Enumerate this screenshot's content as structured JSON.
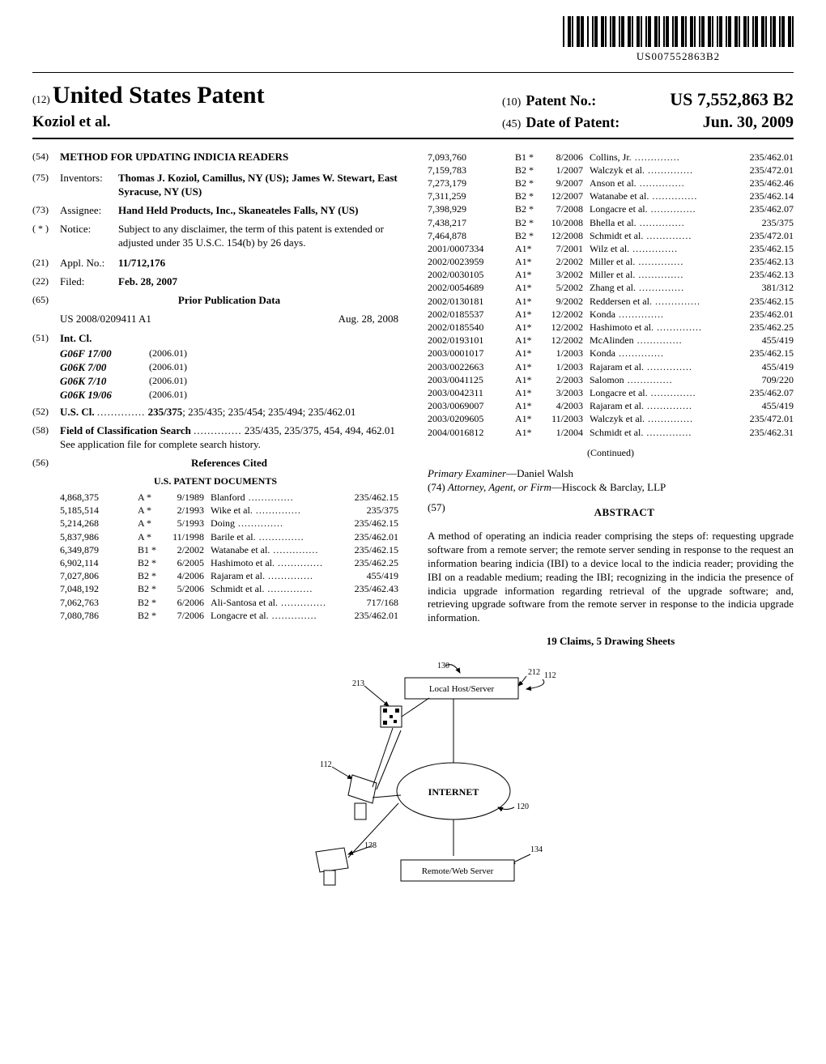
{
  "barcode_number": "US007552863B2",
  "header": {
    "lead_code": "(12)",
    "country_title": "United States Patent",
    "authors": "Koziol et al.",
    "patno_code": "(10)",
    "patno_label": "Patent No.:",
    "patno_value": "US 7,552,863 B2",
    "date_code": "(45)",
    "date_label": "Date of Patent:",
    "date_value": "Jun. 30, 2009"
  },
  "f54": {
    "code": "(54)",
    "title": "METHOD FOR UPDATING INDICIA READERS"
  },
  "f75": {
    "code": "(75)",
    "label": "Inventors:",
    "value": "Thomas J. Koziol, Camillus, NY (US); James W. Stewart, East Syracuse, NY (US)"
  },
  "f73": {
    "code": "(73)",
    "label": "Assignee:",
    "value": "Hand Held Products, Inc., Skaneateles Falls, NY (US)"
  },
  "fnotice": {
    "code": "( * )",
    "label": "Notice:",
    "value": "Subject to any disclaimer, the term of this patent is extended or adjusted under 35 U.S.C. 154(b) by 26 days."
  },
  "f21": {
    "code": "(21)",
    "label": "Appl. No.:",
    "value": "11/712,176"
  },
  "f22": {
    "code": "(22)",
    "label": "Filed:",
    "value": "Feb. 28, 2007"
  },
  "f65": {
    "code": "(65)",
    "heading": "Prior Publication Data",
    "pub_no": "US 2008/0209411 A1",
    "pub_date": "Aug. 28, 2008"
  },
  "f51": {
    "code": "(51)",
    "label": "Int. Cl.",
    "rows": [
      {
        "cls": "G06F 17/00",
        "yr": "(2006.01)"
      },
      {
        "cls": "G06K 7/00",
        "yr": "(2006.01)"
      },
      {
        "cls": "G06K 7/10",
        "yr": "(2006.01)"
      },
      {
        "cls": "G06K 19/06",
        "yr": "(2006.01)"
      }
    ]
  },
  "f52": {
    "code": "(52)",
    "label": "U.S. Cl.",
    "value": "235/375; 235/435; 235/454; 235/494; 235/462.01"
  },
  "f58": {
    "code": "(58)",
    "label": "Field of Classification Search",
    "value": "235/435, 235/375, 454, 494, 462.01",
    "note": "See application file for complete search history."
  },
  "f56": {
    "code": "(56)",
    "heading": "References Cited",
    "sub": "U.S. PATENT DOCUMENTS"
  },
  "left_cites": [
    {
      "pn": "4,868,375",
      "tp": "A  *",
      "dt": "9/1989",
      "nm": "Blanford",
      "cl": "235/462.15"
    },
    {
      "pn": "5,185,514",
      "tp": "A  *",
      "dt": "2/1993",
      "nm": "Wike et al.",
      "cl": "235/375"
    },
    {
      "pn": "5,214,268",
      "tp": "A  *",
      "dt": "5/1993",
      "nm": "Doing",
      "cl": "235/462.15"
    },
    {
      "pn": "5,837,986",
      "tp": "A  *",
      "dt": "11/1998",
      "nm": "Barile et al.",
      "cl": "235/462.01"
    },
    {
      "pn": "6,349,879",
      "tp": "B1 *",
      "dt": "2/2002",
      "nm": "Watanabe et al.",
      "cl": "235/462.15"
    },
    {
      "pn": "6,902,114",
      "tp": "B2 *",
      "dt": "6/2005",
      "nm": "Hashimoto et al.",
      "cl": "235/462.25"
    },
    {
      "pn": "7,027,806",
      "tp": "B2 *",
      "dt": "4/2006",
      "nm": "Rajaram et al.",
      "cl": "455/419"
    },
    {
      "pn": "7,048,192",
      "tp": "B2 *",
      "dt": "5/2006",
      "nm": "Schmidt et al.",
      "cl": "235/462.43"
    },
    {
      "pn": "7,062,763",
      "tp": "B2 *",
      "dt": "6/2006",
      "nm": "Ali-Santosa et al.",
      "cl": "717/168"
    },
    {
      "pn": "7,080,786",
      "tp": "B2 *",
      "dt": "7/2006",
      "nm": "Longacre et al.",
      "cl": "235/462.01"
    }
  ],
  "right_cites": [
    {
      "pn": "7,093,760",
      "tp": "B1 *",
      "dt": "8/2006",
      "nm": "Collins, Jr.",
      "cl": "235/462.01"
    },
    {
      "pn": "7,159,783",
      "tp": "B2 *",
      "dt": "1/2007",
      "nm": "Walczyk et al.",
      "cl": "235/472.01"
    },
    {
      "pn": "7,273,179",
      "tp": "B2 *",
      "dt": "9/2007",
      "nm": "Anson et al.",
      "cl": "235/462.46"
    },
    {
      "pn": "7,311,259",
      "tp": "B2 *",
      "dt": "12/2007",
      "nm": "Watanabe et al.",
      "cl": "235/462.14"
    },
    {
      "pn": "7,398,929",
      "tp": "B2 *",
      "dt": "7/2008",
      "nm": "Longacre et al.",
      "cl": "235/462.07"
    },
    {
      "pn": "7,438,217",
      "tp": "B2 *",
      "dt": "10/2008",
      "nm": "Bhella et al.",
      "cl": "235/375"
    },
    {
      "pn": "7,464,878",
      "tp": "B2 *",
      "dt": "12/2008",
      "nm": "Schmidt et al.",
      "cl": "235/472.01"
    },
    {
      "pn": "2001/0007334",
      "tp": "A1*",
      "dt": "7/2001",
      "nm": "Wilz et al.",
      "cl": "235/462.15"
    },
    {
      "pn": "2002/0023959",
      "tp": "A1*",
      "dt": "2/2002",
      "nm": "Miller et al.",
      "cl": "235/462.13"
    },
    {
      "pn": "2002/0030105",
      "tp": "A1*",
      "dt": "3/2002",
      "nm": "Miller et al.",
      "cl": "235/462.13"
    },
    {
      "pn": "2002/0054689",
      "tp": "A1*",
      "dt": "5/2002",
      "nm": "Zhang et al.",
      "cl": "381/312"
    },
    {
      "pn": "2002/0130181",
      "tp": "A1*",
      "dt": "9/2002",
      "nm": "Reddersen et al.",
      "cl": "235/462.15"
    },
    {
      "pn": "2002/0185537",
      "tp": "A1*",
      "dt": "12/2002",
      "nm": "Konda",
      "cl": "235/462.01"
    },
    {
      "pn": "2002/0185540",
      "tp": "A1*",
      "dt": "12/2002",
      "nm": "Hashimoto et al.",
      "cl": "235/462.25"
    },
    {
      "pn": "2002/0193101",
      "tp": "A1*",
      "dt": "12/2002",
      "nm": "McAlinden",
      "cl": "455/419"
    },
    {
      "pn": "2003/0001017",
      "tp": "A1*",
      "dt": "1/2003",
      "nm": "Konda",
      "cl": "235/462.15"
    },
    {
      "pn": "2003/0022663",
      "tp": "A1*",
      "dt": "1/2003",
      "nm": "Rajaram et al.",
      "cl": "455/419"
    },
    {
      "pn": "2003/0041125",
      "tp": "A1*",
      "dt": "2/2003",
      "nm": "Salomon",
      "cl": "709/220"
    },
    {
      "pn": "2003/0042311",
      "tp": "A1*",
      "dt": "3/2003",
      "nm": "Longacre et al.",
      "cl": "235/462.07"
    },
    {
      "pn": "2003/0069007",
      "tp": "A1*",
      "dt": "4/2003",
      "nm": "Rajaram et al.",
      "cl": "455/419"
    },
    {
      "pn": "2003/0209605",
      "tp": "A1*",
      "dt": "11/2003",
      "nm": "Walczyk et al.",
      "cl": "235/472.01"
    },
    {
      "pn": "2004/0016812",
      "tp": "A1*",
      "dt": "1/2004",
      "nm": "Schmidt et al.",
      "cl": "235/462.31"
    }
  ],
  "continued": "(Continued)",
  "examiner": {
    "label": "Primary Examiner",
    "value": "Daniel Walsh"
  },
  "attorney": {
    "code": "(74)",
    "label": "Attorney, Agent, or Firm",
    "value": "Hiscock & Barclay, LLP"
  },
  "abstract": {
    "code": "(57)",
    "heading": "ABSTRACT",
    "body": "A method of operating an indicia reader comprising the steps of: requesting upgrade software from a remote server; the remote server sending in response to the request an information bearing indicia (IBI) to a device local to the indicia reader; providing the IBI on a readable medium; reading the IBI; recognizing in the indicia the presence of indicia upgrade information regarding retrieval of the upgrade software; and, retrieving upgrade software from the remote server in response to the indicia upgrade information."
  },
  "claims": "19 Claims, 5 Drawing Sheets",
  "figure": {
    "labels": {
      "n130": "130",
      "n212": "212",
      "n213": "213",
      "n112a": "112",
      "n112b": "112",
      "n138": "138",
      "n120": "120",
      "n134": "134",
      "localhost": "Local Host/Server",
      "internet": "INTERNET",
      "remote": "Remote/Web Server"
    }
  }
}
